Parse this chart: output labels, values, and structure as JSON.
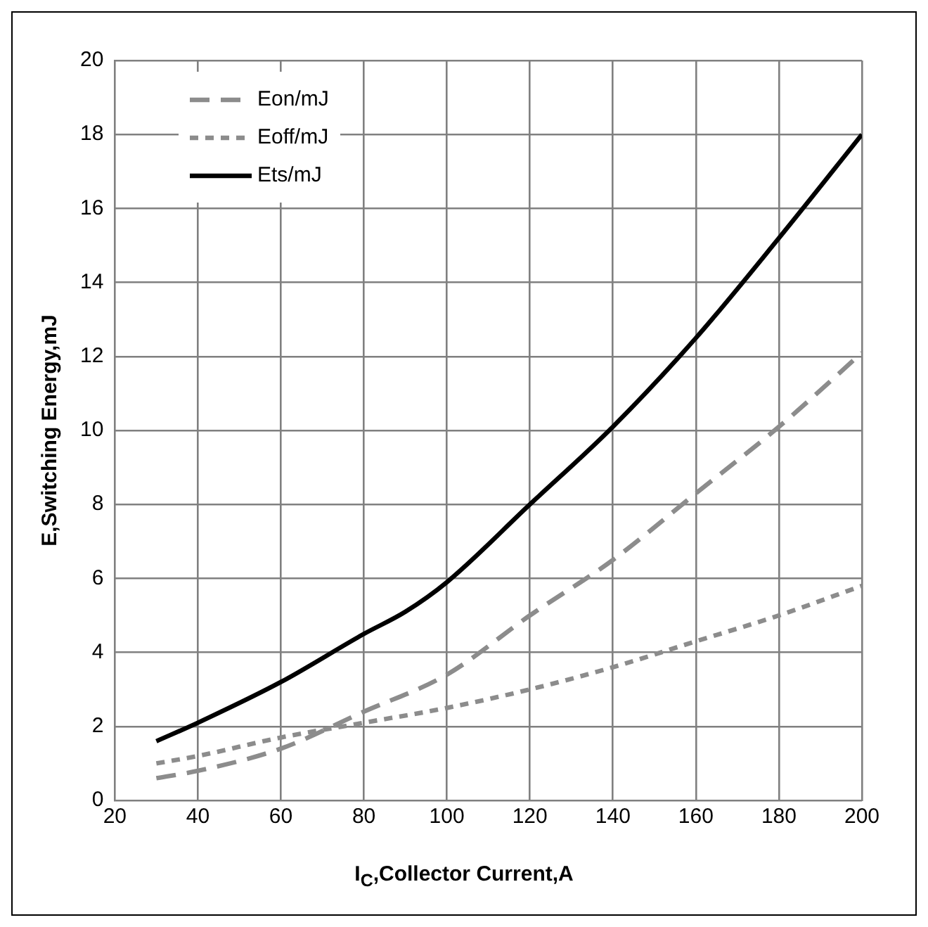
{
  "chart_data": {
    "type": "line",
    "xlabel": "I$_{C}$,Collector Current,A",
    "ylabel": "E,Switching Energy,mJ",
    "xlim": [
      20,
      200
    ],
    "xticks": [
      20,
      40,
      60,
      80,
      100,
      120,
      140,
      160,
      180,
      200
    ],
    "ylim": [
      0,
      20
    ],
    "yticks": [
      0,
      2,
      4,
      6,
      8,
      10,
      12,
      14,
      16,
      18,
      20
    ],
    "grid": true,
    "legend": "top left",
    "marker": "none",
    "series": [
      {
        "name": "Eon/mJ",
        "color": "#8c8c8c",
        "line_style": "dashed",
        "x": [
          30,
          40,
          60,
          80,
          100,
          120,
          140,
          160,
          180,
          200
        ],
        "values": [
          0.6,
          0.8,
          1.4,
          2.4,
          3.4,
          5.0,
          6.5,
          8.3,
          10.1,
          12.1
        ]
      },
      {
        "name": "Eoff/mJ",
        "color": "#8c8c8c",
        "line_style": "dotted",
        "x": [
          30,
          40,
          60,
          80,
          100,
          120,
          140,
          160,
          180,
          200
        ],
        "values": [
          1.0,
          1.2,
          1.7,
          2.1,
          2.5,
          3.0,
          3.6,
          4.3,
          5.0,
          5.8
        ]
      },
      {
        "name": "Ets/mJ",
        "color": "#000000",
        "line_style": "solid",
        "x": [
          30,
          40,
          60,
          80,
          90,
          100,
          120,
          140,
          160,
          180,
          200
        ],
        "values": [
          1.6,
          2.1,
          3.2,
          4.5,
          5.1,
          5.9,
          8.0,
          10.1,
          12.5,
          15.2,
          18.0
        ]
      }
    ]
  }
}
